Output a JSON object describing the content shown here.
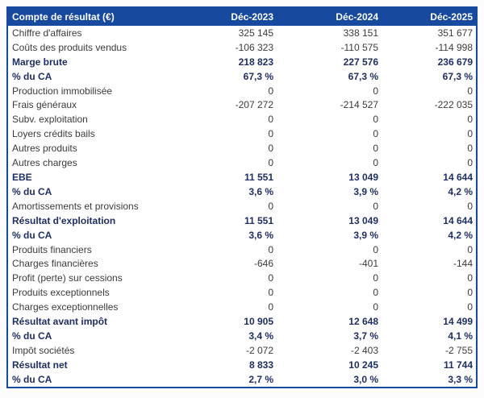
{
  "colors": {
    "header_background": "#17499E",
    "table_border": "#17499E",
    "bold_row_text": "#1F2F63",
    "regular_row_text": "#3B3B3B",
    "header_text": "#FFFFFF",
    "table_background": "#FFFFFF"
  },
  "chart_data": {
    "type": "table",
    "title": "Compte de résultat (€)",
    "columns": [
      "Déc-2023",
      "Déc-2024",
      "Déc-2025"
    ],
    "rows": [
      {
        "label": "Chiffre d'affaires",
        "values": [
          "325 145",
          "338 151",
          "351 677"
        ],
        "bold": false
      },
      {
        "label": "Coûts des produits vendus",
        "values": [
          "-106 323",
          "-110 575",
          "-114 998"
        ],
        "bold": false
      },
      {
        "label": "Marge brute",
        "values": [
          "218 823",
          "227 576",
          "236 679"
        ],
        "bold": true
      },
      {
        "label": "% du CA",
        "values": [
          "67,3 %",
          "67,3 %",
          "67,3 %"
        ],
        "bold": true
      },
      {
        "label": "Production immobilisée",
        "values": [
          "0",
          "0",
          "0"
        ],
        "bold": false
      },
      {
        "label": "Frais généraux",
        "values": [
          "-207 272",
          "-214 527",
          "-222 035"
        ],
        "bold": false
      },
      {
        "label": "Subv. exploitation",
        "values": [
          "0",
          "0",
          "0"
        ],
        "bold": false
      },
      {
        "label": "Loyers crédits bails",
        "values": [
          "0",
          "0",
          "0"
        ],
        "bold": false
      },
      {
        "label": "Autres produits",
        "values": [
          "0",
          "0",
          "0"
        ],
        "bold": false
      },
      {
        "label": "Autres charges",
        "values": [
          "0",
          "0",
          "0"
        ],
        "bold": false
      },
      {
        "label": "EBE",
        "values": [
          "11 551",
          "13 049",
          "14 644"
        ],
        "bold": true
      },
      {
        "label": "% du CA",
        "values": [
          "3,6 %",
          "3,9 %",
          "4,2 %"
        ],
        "bold": true
      },
      {
        "label": "Amortissements et provisions",
        "values": [
          "0",
          "0",
          "0"
        ],
        "bold": false
      },
      {
        "label": "Résultat d'exploitation",
        "values": [
          "11 551",
          "13 049",
          "14 644"
        ],
        "bold": true
      },
      {
        "label": "% du CA",
        "values": [
          "3,6 %",
          "3,9 %",
          "4,2 %"
        ],
        "bold": true
      },
      {
        "label": "Produits financiers",
        "values": [
          "0",
          "0",
          "0"
        ],
        "bold": false
      },
      {
        "label": "Charges financières",
        "values": [
          "-646",
          "-401",
          "-144"
        ],
        "bold": false
      },
      {
        "label": "Profit (perte) sur cessions",
        "values": [
          "0",
          "0",
          "0"
        ],
        "bold": false
      },
      {
        "label": "Produits exceptionnels",
        "values": [
          "0",
          "0",
          "0"
        ],
        "bold": false
      },
      {
        "label": "Charges exceptionnelles",
        "values": [
          "0",
          "0",
          "0"
        ],
        "bold": false
      },
      {
        "label": "Résultat avant impôt",
        "values": [
          "10 905",
          "12 648",
          "14 499"
        ],
        "bold": true
      },
      {
        "label": "% du CA",
        "values": [
          "3,4 %",
          "3,7 %",
          "4,1 %"
        ],
        "bold": true
      },
      {
        "label": "Impôt sociétés",
        "values": [
          "-2 072",
          "-2 403",
          "-2 755"
        ],
        "bold": false
      },
      {
        "label": "Résultat net",
        "values": [
          "8 833",
          "10 245",
          "11 744"
        ],
        "bold": true
      },
      {
        "label": "% du CA",
        "values": [
          "2,7 %",
          "3,0 %",
          "3,3 %"
        ],
        "bold": true
      }
    ]
  }
}
